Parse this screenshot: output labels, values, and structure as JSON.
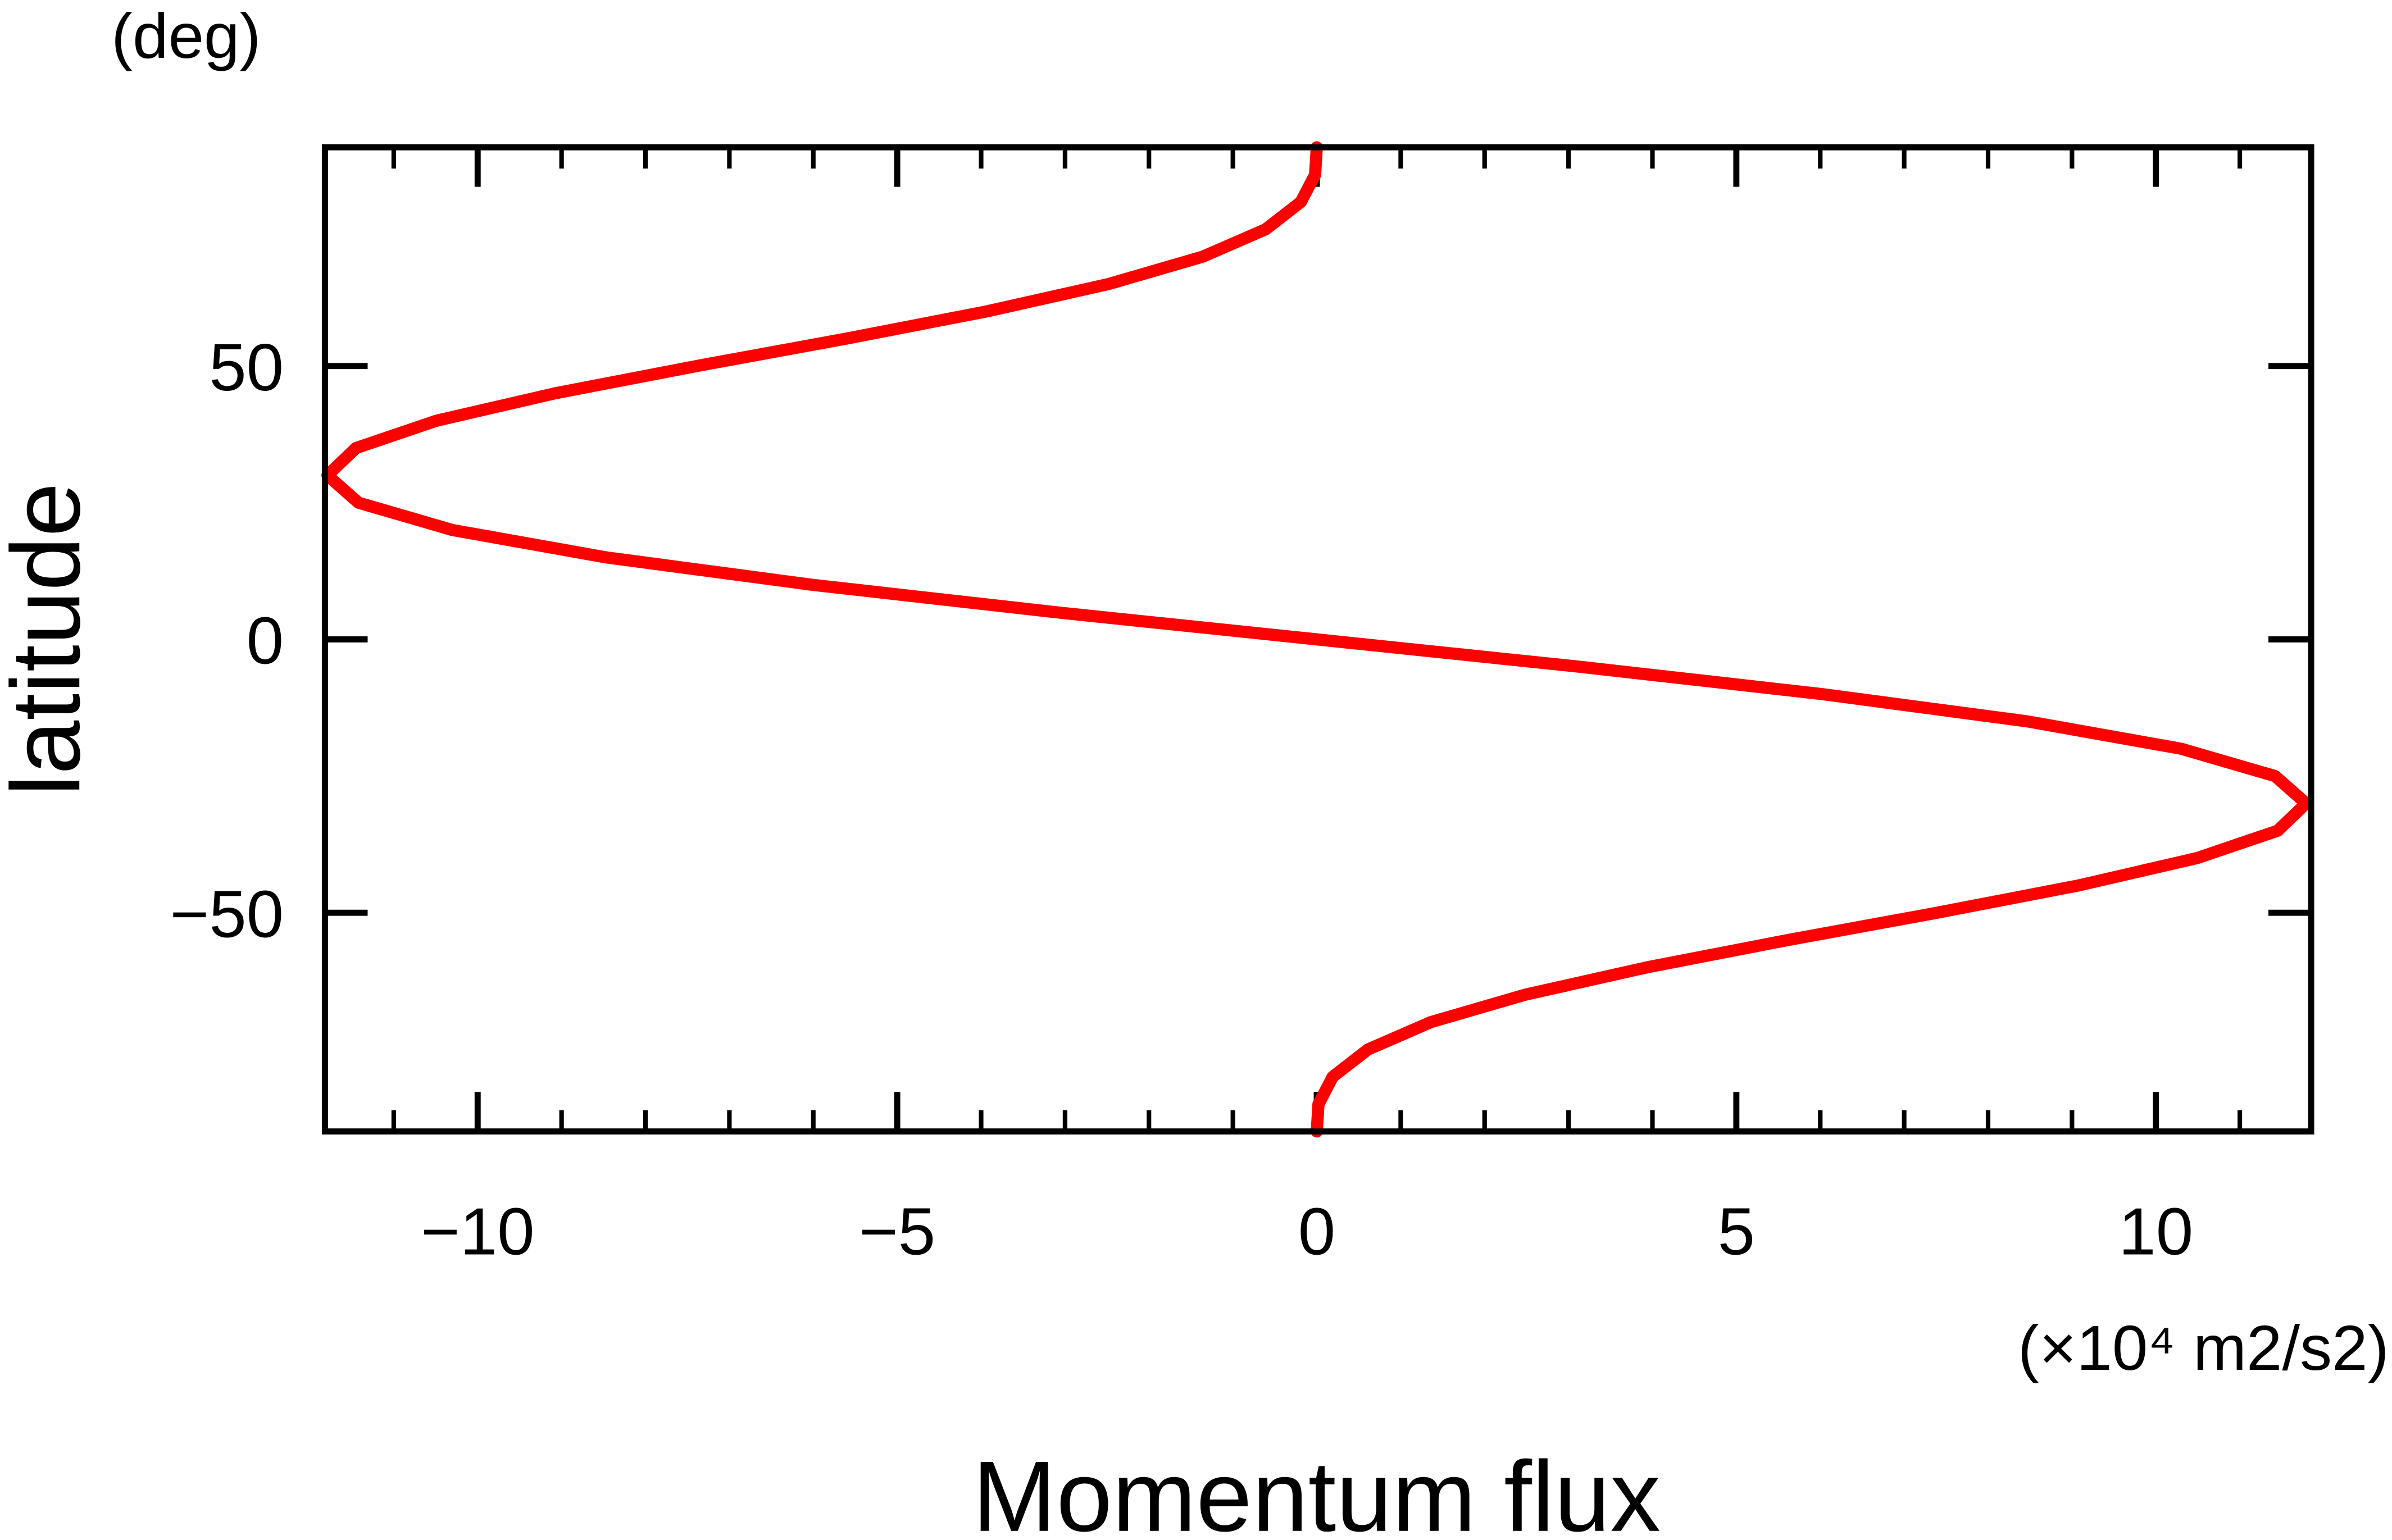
{
  "chart_data": {
    "type": "line",
    "orientation": "horizontal",
    "y_unit_label": "(deg)",
    "ylabel": "latitude",
    "xlabel": "Momentum flux",
    "x_unit_label": "(×10⁴ m2/s2)",
    "y": [
      -90,
      -85,
      -80,
      -75,
      -70,
      -65,
      -60,
      -55,
      -50,
      -45,
      -40,
      -35,
      -30,
      -25,
      -20,
      -15,
      -10,
      -5,
      0,
      5,
      10,
      15,
      20,
      25,
      30,
      35,
      40,
      45,
      50,
      55,
      60,
      65,
      70,
      75,
      80,
      85,
      90
    ],
    "series": [
      {
        "color": "#ff0000",
        "values": [
          0,
          0.02,
          0.19,
          0.61,
          1.36,
          2.48,
          3.93,
          5.61,
          7.39,
          9.08,
          10.49,
          11.45,
          11.79,
          11.42,
          10.3,
          8.47,
          6.02,
          3.13,
          0,
          -3.13,
          -6.02,
          -8.47,
          -10.3,
          -11.42,
          -11.79,
          -11.45,
          -10.49,
          -9.08,
          -7.39,
          -5.61,
          -3.93,
          -2.48,
          -1.36,
          -0.61,
          -0.19,
          -0.02,
          0
        ]
      }
    ],
    "xlim": [
      -11.82,
      11.85
    ],
    "ylim": [
      -90,
      90
    ],
    "xticks": [
      {
        "value": -10,
        "label": "−10"
      },
      {
        "value": -5,
        "label": "−5"
      },
      0,
      5,
      10
    ],
    "xminorticks": [
      -11,
      -9,
      -8,
      -7,
      -6,
      -4,
      -3,
      -2,
      -1,
      1,
      2,
      3,
      4,
      6,
      7,
      8,
      9,
      11
    ],
    "yticks": [
      {
        "value": -50,
        "label": "−50"
      },
      0,
      50
    ]
  }
}
